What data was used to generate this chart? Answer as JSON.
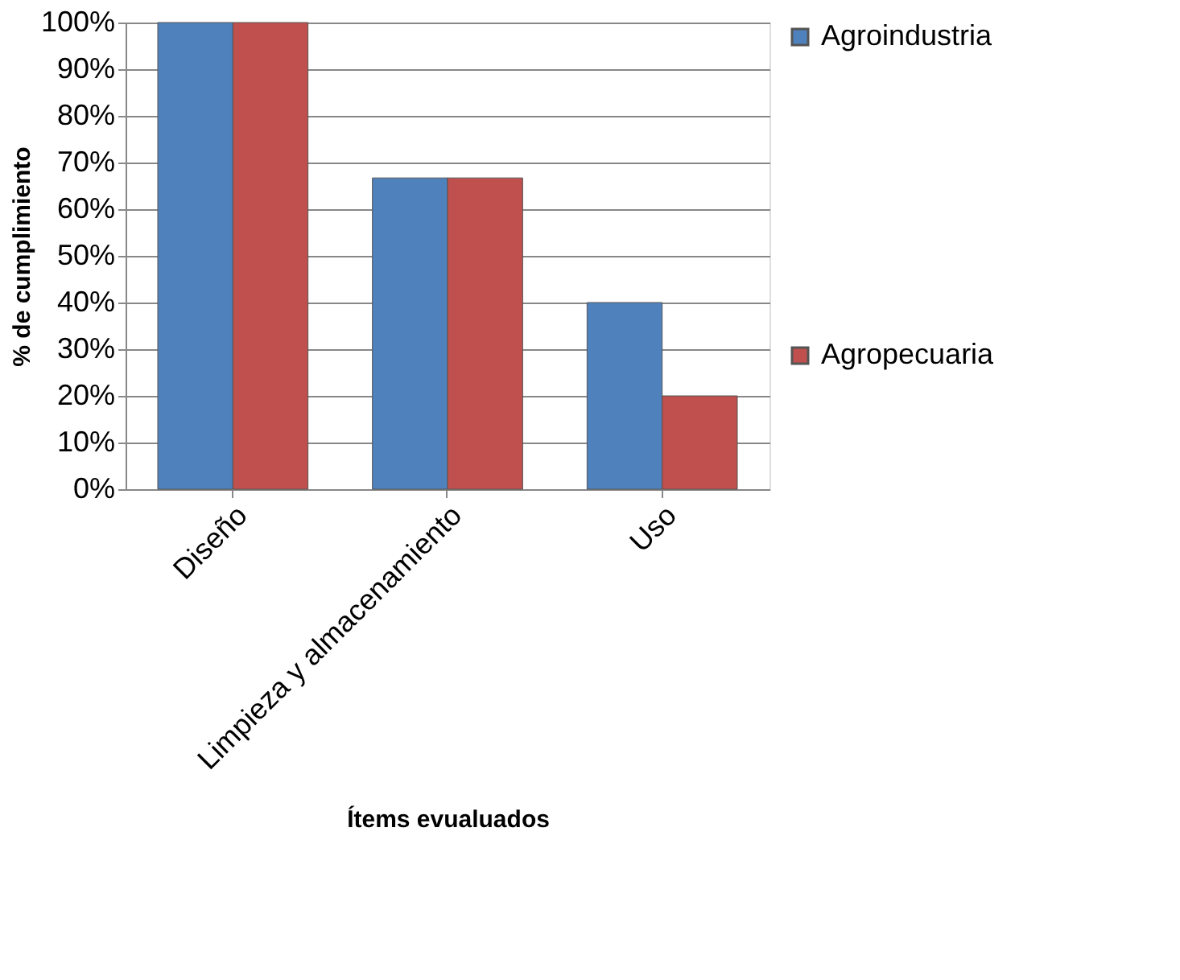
{
  "chart_data": {
    "type": "bar",
    "xlabel": "Ítems evualuados",
    "ylabel": "% de cumplimiento",
    "categories": [
      "Diseño",
      "Limpieza y almacenamiento",
      "Uso"
    ],
    "series": [
      {
        "name": "Agroindustria",
        "color": "#4f81bd",
        "values": [
          100,
          66.7,
          40
        ]
      },
      {
        "name": "Agropecuaria",
        "color": "#c0504d",
        "values": [
          100,
          66.7,
          20
        ]
      }
    ],
    "ylim": [
      0,
      100
    ],
    "yticks": [
      {
        "value": 0,
        "label": "0%"
      },
      {
        "value": 10,
        "label": "10%"
      },
      {
        "value": 20,
        "label": "20%"
      },
      {
        "value": 30,
        "label": "30%"
      },
      {
        "value": 40,
        "label": "40%"
      },
      {
        "value": 50,
        "label": "50%"
      },
      {
        "value": 60,
        "label": "60%"
      },
      {
        "value": 70,
        "label": "70%"
      },
      {
        "value": 80,
        "label": "80%"
      },
      {
        "value": 90,
        "label": "90%"
      },
      {
        "value": 100,
        "label": "100%"
      }
    ],
    "grid": "y",
    "legend": "right"
  }
}
